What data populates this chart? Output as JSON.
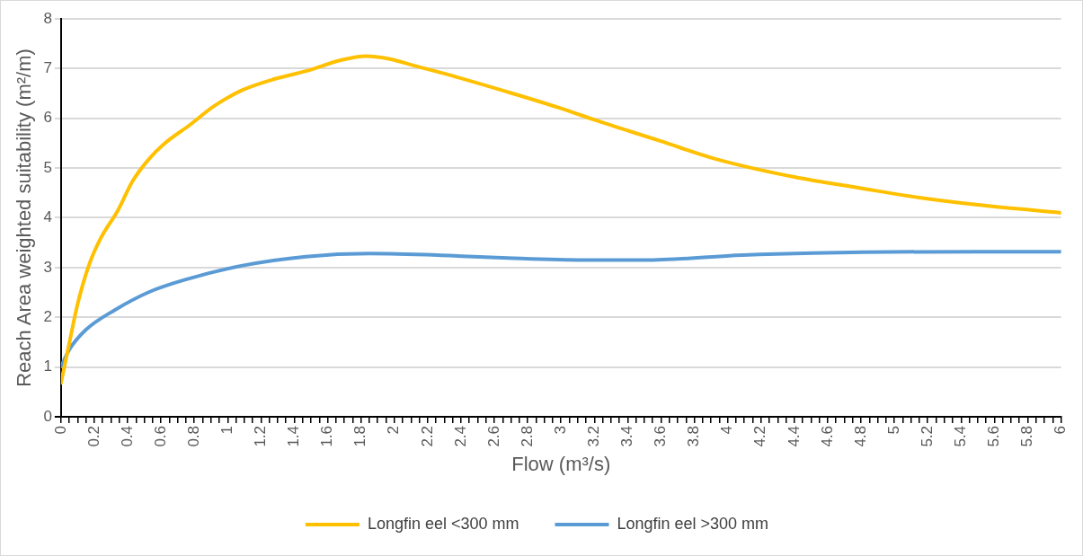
{
  "chart_data": {
    "type": "line",
    "xlabel": "Flow (m³/s)",
    "ylabel": "Reach Area weighted suitability (m²/m)",
    "xlim": [
      0,
      6
    ],
    "ylim": [
      0,
      8
    ],
    "yticks": [
      0,
      1,
      2,
      3,
      4,
      5,
      6,
      7,
      8
    ],
    "xticks": [
      0,
      {
        "value": 0.05,
        "label": null
      },
      {
        "value": 0.1,
        "label": null
      },
      {
        "value": 0.15,
        "label": null
      },
      0.2,
      {
        "value": 0.25,
        "label": null
      },
      {
        "value": 0.3,
        "label": null
      },
      {
        "value": 0.35,
        "label": null
      },
      0.4,
      {
        "value": 0.45,
        "label": null
      },
      {
        "value": 0.5,
        "label": null
      },
      {
        "value": 0.55,
        "label": null
      },
      0.6,
      {
        "value": 0.65,
        "label": null
      },
      {
        "value": 0.7,
        "label": null
      },
      {
        "value": 0.75,
        "label": null
      },
      0.8,
      {
        "value": 0.85,
        "label": null
      },
      {
        "value": 0.9,
        "label": null
      },
      {
        "value": 0.95,
        "label": null
      },
      1,
      {
        "value": 1.05,
        "label": null
      },
      {
        "value": 1.1,
        "label": null
      },
      {
        "value": 1.15,
        "label": null
      },
      1.2,
      {
        "value": 1.25,
        "label": null
      },
      {
        "value": 1.3,
        "label": null
      },
      {
        "value": 1.35,
        "label": null
      },
      1.4,
      {
        "value": 1.45,
        "label": null
      },
      {
        "value": 1.5,
        "label": null
      },
      {
        "value": 1.55,
        "label": null
      },
      1.6,
      {
        "value": 1.65,
        "label": null
      },
      {
        "value": 1.7,
        "label": null
      },
      {
        "value": 1.75,
        "label": null
      },
      1.8,
      {
        "value": 1.85,
        "label": null
      },
      {
        "value": 1.9,
        "label": null
      },
      {
        "value": 1.95,
        "label": null
      },
      2,
      {
        "value": 2.05,
        "label": null
      },
      {
        "value": 2.1,
        "label": null
      },
      {
        "value": 2.15,
        "label": null
      },
      2.2,
      {
        "value": 2.25,
        "label": null
      },
      {
        "value": 2.3,
        "label": null
      },
      {
        "value": 2.35,
        "label": null
      },
      2.4,
      {
        "value": 2.45,
        "label": null
      },
      {
        "value": 2.5,
        "label": null
      },
      {
        "value": 2.55,
        "label": null
      },
      2.6,
      {
        "value": 2.65,
        "label": null
      },
      {
        "value": 2.7,
        "label": null
      },
      {
        "value": 2.75,
        "label": null
      },
      2.8,
      {
        "value": 2.85,
        "label": null
      },
      {
        "value": 2.9,
        "label": null
      },
      {
        "value": 2.95,
        "label": null
      },
      3,
      {
        "value": 3.05,
        "label": null
      },
      {
        "value": 3.1,
        "label": null
      },
      {
        "value": 3.15,
        "label": null
      },
      3.2,
      {
        "value": 3.25,
        "label": null
      },
      {
        "value": 3.3,
        "label": null
      },
      {
        "value": 3.35,
        "label": null
      },
      3.4,
      {
        "value": 3.45,
        "label": null
      },
      {
        "value": 3.5,
        "label": null
      },
      {
        "value": 3.55,
        "label": null
      },
      3.6,
      {
        "value": 3.65,
        "label": null
      },
      {
        "value": 3.7,
        "label": null
      },
      {
        "value": 3.75,
        "label": null
      },
      3.8,
      {
        "value": 3.85,
        "label": null
      },
      {
        "value": 3.9,
        "label": null
      },
      {
        "value": 3.95,
        "label": null
      },
      4,
      {
        "value": 4.05,
        "label": null
      },
      {
        "value": 4.1,
        "label": null
      },
      {
        "value": 4.15,
        "label": null
      },
      4.2,
      {
        "value": 4.25,
        "label": null
      },
      {
        "value": 4.3,
        "label": null
      },
      {
        "value": 4.35,
        "label": null
      },
      4.4,
      {
        "value": 4.45,
        "label": null
      },
      {
        "value": 4.5,
        "label": null
      },
      {
        "value": 4.55,
        "label": null
      },
      4.6,
      {
        "value": 4.65,
        "label": null
      },
      {
        "value": 4.7,
        "label": null
      },
      {
        "value": 4.75,
        "label": null
      },
      4.8,
      {
        "value": 4.85,
        "label": null
      },
      {
        "value": 4.9,
        "label": null
      },
      {
        "value": 4.95,
        "label": null
      },
      5,
      {
        "value": 5.05,
        "label": null
      },
      {
        "value": 5.1,
        "label": null
      },
      {
        "value": 5.15,
        "label": null
      },
      5.2,
      {
        "value": 5.25,
        "label": null
      },
      {
        "value": 5.3,
        "label": null
      },
      {
        "value": 5.35,
        "label": null
      },
      5.4,
      {
        "value": 5.45,
        "label": null
      },
      {
        "value": 5.5,
        "label": null
      },
      {
        "value": 5.55,
        "label": null
      },
      5.6,
      {
        "value": 5.65,
        "label": null
      },
      {
        "value": 5.7,
        "label": null
      },
      {
        "value": 5.75,
        "label": null
      },
      5.8,
      {
        "value": 5.85,
        "label": null
      },
      {
        "value": 5.9,
        "label": null
      },
      {
        "value": 5.95,
        "label": null
      },
      6
    ],
    "grid": "y",
    "legend": "bottom",
    "marker": "none",
    "line_style": "solid",
    "series": [
      {
        "name": "Longfin eel <300 mm",
        "color": "#ffc000",
        "x": [
          0,
          0.05,
          0.1,
          0.17,
          0.24,
          0.34,
          0.43,
          0.53,
          0.62,
          0.77,
          0.92,
          1.09,
          1.28,
          1.47,
          1.68,
          1.83,
          1.96,
          2.13,
          2.3,
          2.68,
          3.0,
          3.2,
          3.6,
          3.92,
          4.4,
          4.79,
          5.14,
          5.5,
          6.0
        ],
        "values": [
          0.68,
          1.48,
          2.27,
          3.07,
          3.6,
          4.14,
          4.74,
          5.19,
          5.49,
          5.86,
          6.25,
          6.57,
          6.79,
          6.95,
          7.17,
          7.25,
          7.2,
          7.05,
          6.9,
          6.53,
          6.2,
          5.97,
          5.54,
          5.19,
          4.82,
          4.6,
          4.41,
          4.26,
          4.1
        ]
      },
      {
        "name": "Longfin eel >300 mm",
        "color": "#5b9bd5",
        "x": [
          0,
          0.05,
          0.15,
          0.32,
          0.53,
          0.76,
          1.09,
          1.47,
          1.85,
          2.33,
          2.68,
          3.14,
          3.5,
          4.09,
          4.51,
          5.5,
          6.0
        ],
        "values": [
          1.01,
          1.35,
          1.75,
          2.14,
          2.51,
          2.77,
          3.04,
          3.22,
          3.28,
          3.24,
          3.19,
          3.15,
          3.15,
          3.25,
          3.29,
          3.32,
          3.32
        ]
      }
    ]
  }
}
